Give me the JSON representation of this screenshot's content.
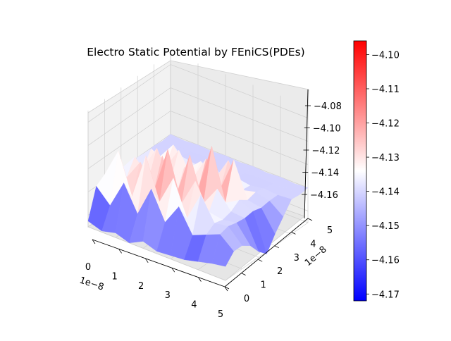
{
  "chart_data": {
    "type": "surface3d",
    "title": "Electro Static Potential by FEniCS(PDEs)",
    "x_axis": {
      "ticks": [
        0,
        1,
        2,
        3,
        4,
        5
      ],
      "tick_labels": [
        "0",
        "1",
        "2",
        "3",
        "4",
        "5"
      ],
      "offset_label": "1e−8",
      "range": [
        0,
        5
      ]
    },
    "y_axis": {
      "ticks": [
        0,
        1,
        2,
        3,
        4,
        5
      ],
      "tick_labels": [
        "0",
        "1",
        "2",
        "3",
        "4",
        "5"
      ],
      "offset_label": "1e−8",
      "range": [
        0,
        5
      ]
    },
    "z_axis": {
      "ticks": [
        -4.16,
        -4.14,
        -4.12,
        -4.1,
        -4.08
      ],
      "tick_labels": [
        "−4.16",
        "−4.14",
        "−4.12",
        "−4.10",
        "−4.08"
      ],
      "range": [
        -4.17,
        -4.07
      ]
    },
    "colorbar": {
      "colormap": "bwr",
      "min": -4.172,
      "max": -4.096,
      "ticks": [
        -4.17,
        -4.16,
        -4.15,
        -4.14,
        -4.13,
        -4.12,
        -4.11,
        -4.1
      ],
      "tick_labels": [
        "−4.17",
        "−4.16",
        "−4.15",
        "−4.14",
        "−4.13",
        "−4.12",
        "−4.11",
        "−4.10"
      ],
      "colors": {
        "low": "#0000ff",
        "mid": "#ffffff",
        "high": "#ff0000"
      }
    },
    "surface": {
      "grid_x": [
        0,
        0.5,
        1,
        1.5,
        2,
        2.5,
        3,
        3.5,
        4,
        4.5,
        5
      ],
      "grid_y": [
        0,
        0.5,
        1,
        1.5,
        2,
        2.5,
        3,
        3.5,
        4,
        4.5,
        5
      ],
      "z": [
        [
          -4.165,
          -4.169,
          -4.166,
          -4.17,
          -4.164,
          -4.168,
          -4.167,
          -4.166,
          -4.163,
          -4.16,
          -4.158
        ],
        [
          -4.14,
          -4.152,
          -4.128,
          -4.15,
          -4.124,
          -4.148,
          -4.13,
          -4.15,
          -4.145,
          -4.14,
          -4.15
        ],
        [
          -4.135,
          -4.11,
          -4.145,
          -4.105,
          -4.14,
          -4.115,
          -4.145,
          -4.12,
          -4.14,
          -4.138,
          -4.15
        ],
        [
          -4.14,
          -4.138,
          -4.12,
          -4.14,
          -4.1,
          -4.142,
          -4.118,
          -4.14,
          -4.142,
          -4.14,
          -4.155
        ],
        [
          -4.14,
          -4.125,
          -4.14,
          -4.115,
          -4.145,
          -4.105,
          -4.142,
          -4.125,
          -4.14,
          -4.141,
          -4.165
        ],
        [
          -4.142,
          -4.14,
          -4.118,
          -4.142,
          -4.125,
          -4.14,
          -4.098,
          -4.142,
          -4.135,
          -4.14,
          -4.172
        ],
        [
          -4.14,
          -4.128,
          -4.14,
          -4.12,
          -4.14,
          -4.118,
          -4.14,
          -4.11,
          -4.14,
          -4.142,
          -4.16
        ],
        [
          -4.141,
          -4.14,
          -4.125,
          -4.141,
          -4.13,
          -4.141,
          -4.12,
          -4.141,
          -4.138,
          -4.141,
          -4.15
        ],
        [
          -4.14,
          -4.141,
          -4.14,
          -4.142,
          -4.14,
          -4.141,
          -4.14,
          -4.142,
          -4.14,
          -4.141,
          -4.14
        ],
        [
          -4.141,
          -4.14,
          -4.141,
          -4.14,
          -4.141,
          -4.14,
          -4.141,
          -4.14,
          -4.141,
          -4.14,
          -4.141
        ],
        [
          -4.14,
          -4.141,
          -4.14,
          -4.141,
          -4.14,
          -4.141,
          -4.14,
          -4.141,
          -4.14,
          -4.141,
          -4.14
        ]
      ]
    }
  }
}
